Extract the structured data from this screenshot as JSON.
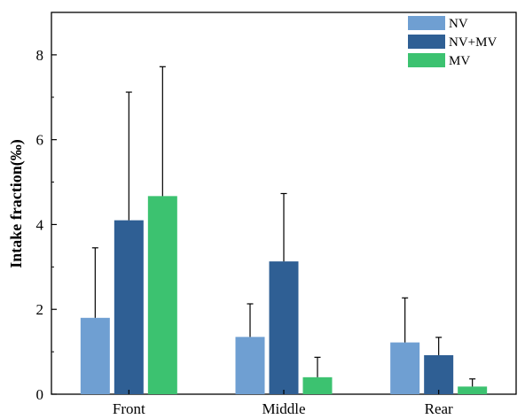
{
  "chart_data": {
    "type": "bar",
    "title": "",
    "xlabel": "",
    "ylabel": "Intake fraction(‰)",
    "categories": [
      "Front",
      "Middle",
      "Rear"
    ],
    "ylim": [
      0,
      9
    ],
    "yticks": [
      0,
      2,
      4,
      6,
      8
    ],
    "ytick_labels": [
      "0",
      "2",
      "4",
      "6",
      "8"
    ],
    "grid": false,
    "legend_position": "top-right",
    "error_bars": "upper",
    "series": [
      {
        "name": "NV",
        "color": "#6f9fd2",
        "values": [
          1.8,
          1.35,
          1.22
        ],
        "errors": [
          1.65,
          0.78,
          1.05
        ]
      },
      {
        "name": "NV+MV",
        "color": "#2f5f94",
        "values": [
          4.1,
          3.13,
          0.92
        ],
        "errors": [
          3.02,
          1.6,
          0.42
        ]
      },
      {
        "name": "MV",
        "color": "#3cc270",
        "values": [
          4.67,
          0.4,
          0.18
        ],
        "errors": [
          3.05,
          0.47,
          0.18
        ]
      }
    ]
  }
}
